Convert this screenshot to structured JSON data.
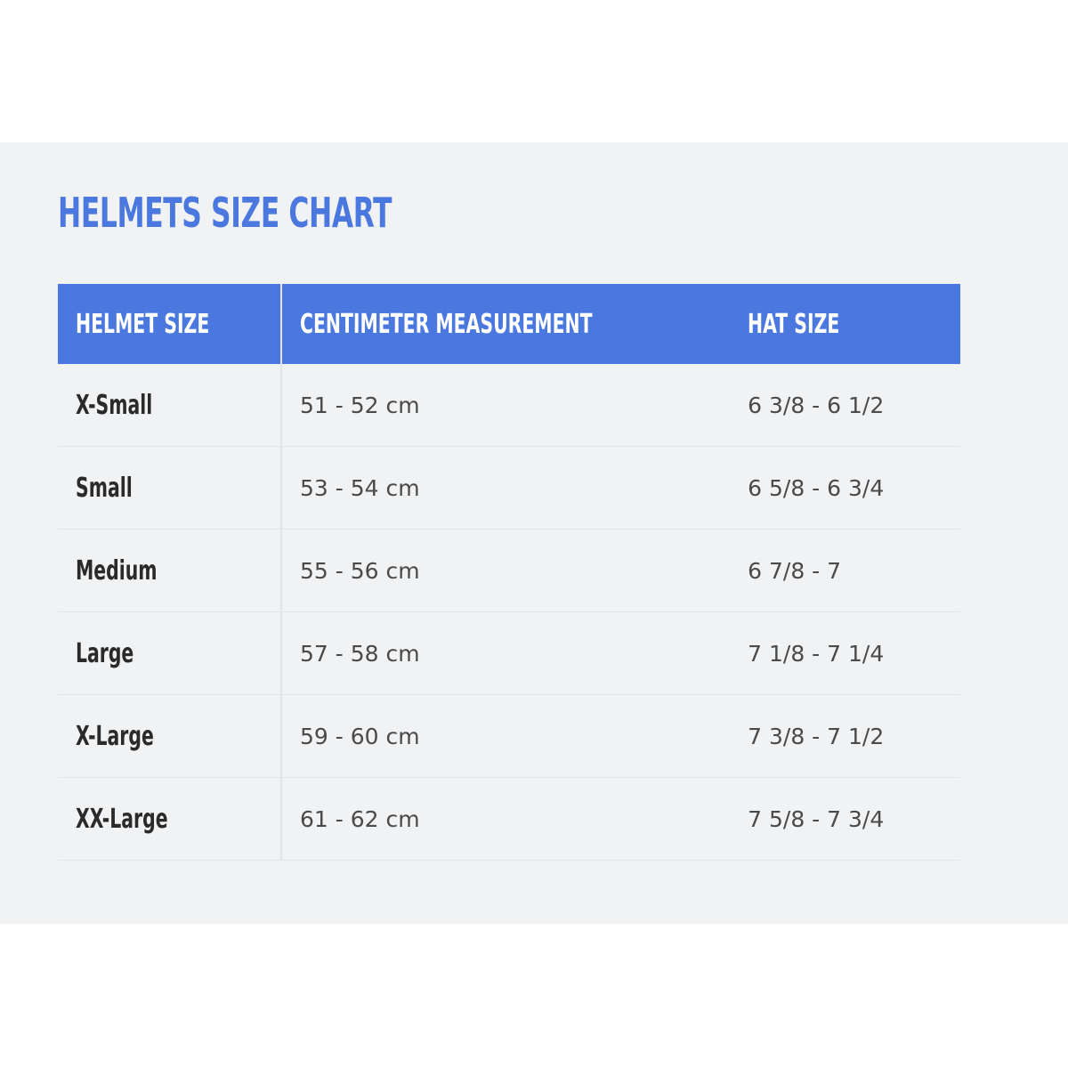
{
  "title": "HELMETS SIZE CHART",
  "accent_color": "#4a78de",
  "table": {
    "headers": [
      "HELMET SIZE",
      "CENTIMETER MEASUREMENT",
      "HAT SIZE"
    ],
    "rows": [
      {
        "size": "X-Small",
        "cm": "51 - 52 cm",
        "hat": "6 3/8 - 6 1/2"
      },
      {
        "size": "Small",
        "cm": "53 - 54 cm",
        "hat": "6 5/8 - 6 3/4"
      },
      {
        "size": "Medium",
        "cm": "55 - 56 cm",
        "hat": "6 7/8 - 7"
      },
      {
        "size": "Large",
        "cm": "57 - 58 cm",
        "hat": "7 1/8 - 7 1/4"
      },
      {
        "size": "X-Large",
        "cm": "59 - 60 cm",
        "hat": "7 3/8 - 7 1/2"
      },
      {
        "size": "XX-Large",
        "cm": "61 - 62 cm",
        "hat": "7 5/8 - 7 3/4"
      }
    ]
  }
}
